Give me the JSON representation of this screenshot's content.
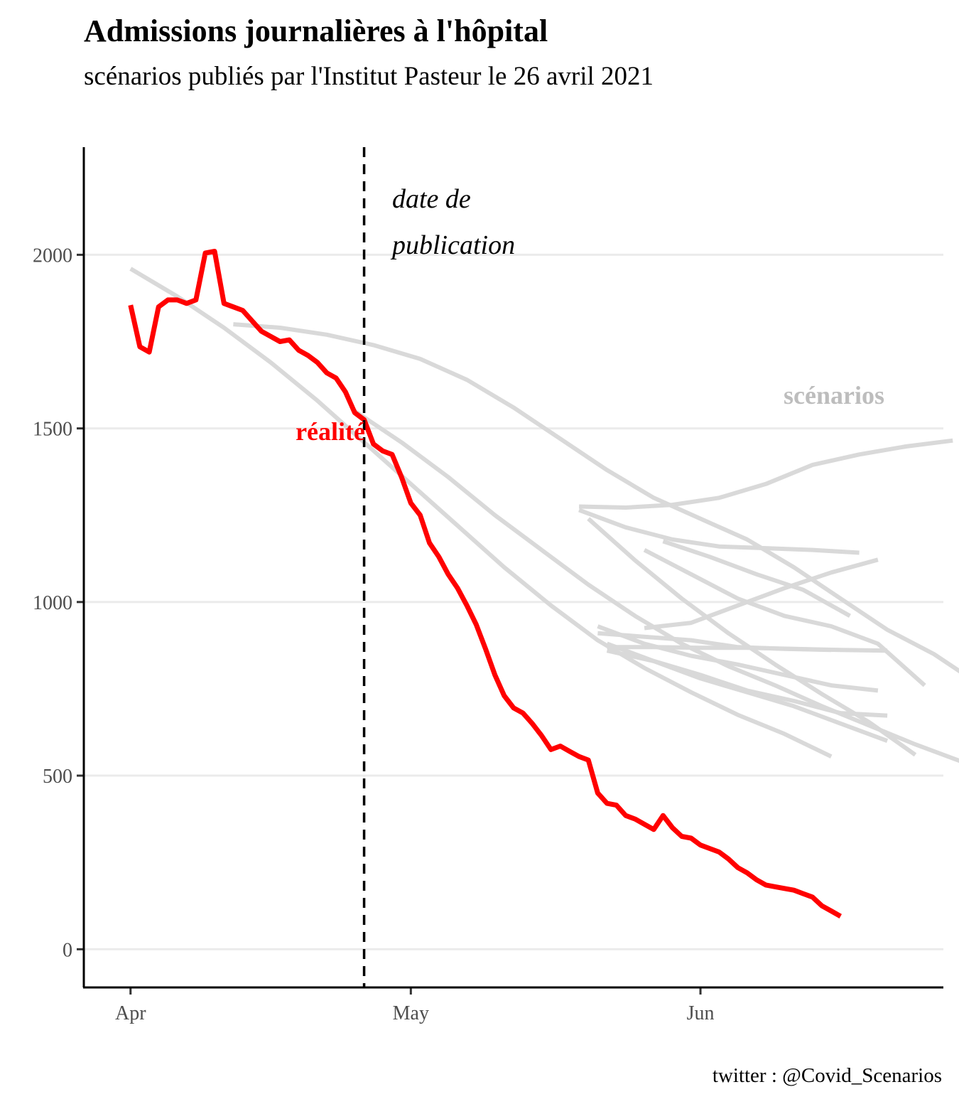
{
  "header": {
    "title": "Admissions journalières à l'hôpital",
    "subtitle": "scénarios publiés par l'Institut Pasteur le 26 avril 2021"
  },
  "footer": {
    "caption": "twitter : @Covid_Scenarios"
  },
  "chart_data": {
    "type": "line",
    "title": "Admissions journalières à l'hôpital",
    "subtitle": "scénarios publiés par l'Institut Pasteur le 26 avril 2021",
    "xlabel": "",
    "ylabel": "",
    "x_axis": {
      "type": "date",
      "range": [
        "2021-03-27",
        "2021-06-27"
      ],
      "ticks": [
        "2021-04-01",
        "2021-05-01",
        "2021-06-01"
      ],
      "tick_labels": [
        "Apr",
        "May",
        "Jun"
      ]
    },
    "y_axis": {
      "range": [
        -110,
        2310
      ],
      "ticks": [
        0,
        500,
        1000,
        1500,
        2000
      ],
      "tick_labels": [
        "0",
        "500",
        "1000",
        "1500",
        "2000"
      ]
    },
    "grid": "horizontal major",
    "colors": {
      "reality": "#ff0000",
      "scenarios": "#d9d9d9",
      "gridline": "#ebebeb",
      "publication_line": "#000000"
    },
    "annotations": {
      "publication_date": "2021-04-26",
      "publication_label_line1": "date de",
      "publication_label_line2": "publication",
      "reality_label": "réalité",
      "scenarios_label": "scénarios"
    },
    "series": [
      {
        "key": "reality",
        "start": "2021-04-01",
        "values": [
          1855,
          1735,
          1720,
          1850,
          1870,
          1870,
          1860,
          1870,
          2005,
          2010,
          1860,
          1850,
          1840,
          1810,
          1780,
          1765,
          1750,
          1755,
          1725,
          1710,
          1690,
          1660,
          1645,
          1605,
          1545,
          1525,
          1455,
          1435,
          1425,
          1360,
          1285,
          1250,
          1170,
          1130,
          1080,
          1040,
          990,
          935,
          865,
          790,
          730,
          695,
          680,
          650,
          615,
          575,
          585,
          570,
          555,
          545,
          450,
          420,
          415,
          385,
          375,
          360,
          345,
          385,
          350,
          325,
          320,
          300,
          290,
          280,
          260,
          235,
          220,
          200,
          185,
          180,
          175,
          170,
          160,
          150,
          125,
          110,
          95
        ]
      },
      {
        "key": "scenario-1",
        "start": "2021-04-01",
        "step": 5,
        "values": [
          1960,
          1880,
          1790,
          1690,
          1580,
          1460,
          1340,
          1220,
          1100,
          990,
          890,
          810,
          740,
          675,
          620,
          555
        ]
      },
      {
        "key": "scenario-2",
        "start": "2021-04-12",
        "step": 5,
        "values": [
          1800,
          1790,
          1770,
          1740,
          1700,
          1640,
          1560,
          1470,
          1380,
          1300,
          1240,
          1180,
          1100,
          1010,
          920,
          850,
          760
        ]
      },
      {
        "key": "scenario-3",
        "start": "2021-04-25",
        "step": 5,
        "values": [
          1550,
          1460,
          1360,
          1250,
          1150,
          1050,
          960,
          880,
          815,
          760,
          700,
          645,
          590,
          540,
          495,
          465
        ]
      },
      {
        "key": "scenario-4",
        "start": "2021-05-19",
        "step": 5,
        "values": [
          1275,
          1272,
          1280,
          1300,
          1340,
          1395,
          1425,
          1448,
          1465
        ]
      },
      {
        "key": "scenario-5",
        "start": "2021-05-19",
        "step": 5,
        "values": [
          1265,
          1215,
          1180,
          1160,
          1155,
          1150,
          1142
        ]
      },
      {
        "key": "scenario-6",
        "start": "2021-05-28",
        "step": 5,
        "values": [
          1175,
          1130,
          1080,
          1035,
          960
        ]
      },
      {
        "key": "scenario-7",
        "start": "2021-05-26",
        "step": 5,
        "values": [
          1150,
          1080,
          1010,
          960,
          930,
          880,
          760
        ]
      },
      {
        "key": "scenario-8",
        "start": "2021-05-20",
        "step": 5,
        "values": [
          1240,
          1120,
          1010,
          910,
          820,
          735,
          655,
          560
        ]
      },
      {
        "key": "scenario-9",
        "start": "2021-05-26",
        "step": 5,
        "values": [
          925,
          940,
          990,
          1040,
          1085,
          1122
        ]
      },
      {
        "key": "scenario-10",
        "start": "2021-05-21",
        "step": 5,
        "values": [
          910,
          900,
          890,
          870,
          865,
          862
        ]
      },
      {
        "key": "scenario-11",
        "start": "2021-05-22",
        "step": 5,
        "values": [
          870,
          870,
          868,
          868,
          865,
          862,
          860
        ]
      },
      {
        "key": "scenario-12",
        "start": "2021-05-21",
        "step": 5,
        "values": [
          930,
          880,
          845,
          820,
          790,
          760,
          745
        ]
      },
      {
        "key": "scenario-13",
        "start": "2021-05-22",
        "step": 5,
        "values": [
          860,
          830,
          790,
          745,
          715,
          680,
          673
        ]
      },
      {
        "key": "scenario-14",
        "start": "2021-05-22",
        "step": 5,
        "values": [
          880,
          830,
          780,
          740,
          700,
          650,
          600
        ]
      }
    ]
  }
}
